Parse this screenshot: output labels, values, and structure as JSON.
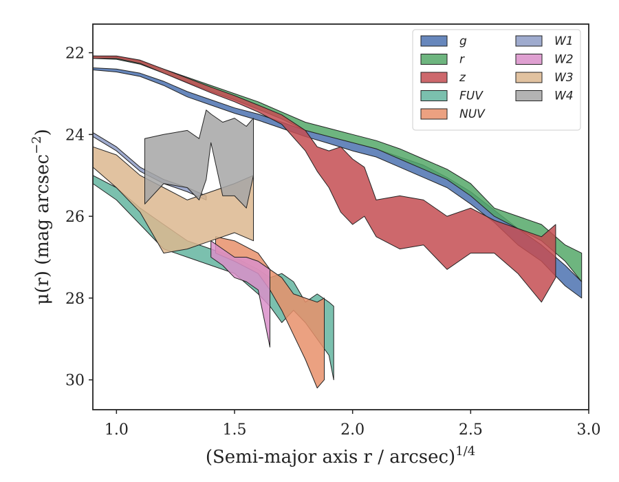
{
  "chart_data": {
    "type": "area",
    "xlabel": "(Semi-major axis r / arcsec)",
    "xlabel_exponent": "1/4",
    "ylabel": "μ(r) (mag arcsec",
    "ylabel_exponent": "−2",
    "ylabel_close": ")",
    "xlim": [
      0.9,
      3.0
    ],
    "ylim": [
      30.73,
      21.3
    ],
    "y_inverted": true,
    "xticks": [
      1.0,
      1.5,
      2.0,
      2.5,
      3.0
    ],
    "xtick_labels": [
      "1.0",
      "1.5",
      "2.0",
      "2.5",
      "3.0"
    ],
    "yticks": [
      22,
      24,
      26,
      28,
      30
    ],
    "ytick_labels": [
      "22",
      "24",
      "26",
      "28",
      "30"
    ],
    "legend_position": "top-right",
    "legend_columns": 2,
    "series": [
      {
        "name": "g",
        "color": "#4c72b0",
        "x": [
          0.9,
          1.0,
          1.1,
          1.2,
          1.3,
          1.4,
          1.5,
          1.6,
          1.7,
          1.8,
          1.9,
          2.0,
          2.1,
          2.2,
          2.3,
          2.4,
          2.5,
          2.6,
          2.7,
          2.8,
          2.9,
          2.97
        ],
        "lo": [
          22.37,
          22.4,
          22.5,
          22.7,
          22.95,
          23.15,
          23.35,
          23.5,
          23.7,
          23.9,
          24.05,
          24.2,
          24.35,
          24.55,
          24.75,
          25.05,
          25.4,
          25.85,
          26.3,
          26.7,
          27.2,
          27.6
        ],
        "hi": [
          22.42,
          22.47,
          22.58,
          22.8,
          23.08,
          23.28,
          23.48,
          23.65,
          23.85,
          24.05,
          24.22,
          24.4,
          24.55,
          24.8,
          25.05,
          25.3,
          25.7,
          26.15,
          26.7,
          27.1,
          27.7,
          28.0
        ]
      },
      {
        "name": "r",
        "color": "#55a868",
        "x": [
          0.9,
          1.0,
          1.1,
          1.2,
          1.3,
          1.4,
          1.5,
          1.6,
          1.7,
          1.8,
          1.9,
          2.0,
          2.1,
          2.2,
          2.3,
          2.4,
          2.5,
          2.6,
          2.7,
          2.8,
          2.9,
          2.97
        ],
        "lo": [
          22.08,
          22.1,
          22.2,
          22.4,
          22.6,
          22.8,
          23.0,
          23.2,
          23.45,
          23.7,
          23.85,
          24.0,
          24.15,
          24.35,
          24.6,
          24.85,
          25.2,
          25.8,
          26.0,
          26.2,
          26.7,
          26.9
        ],
        "hi": [
          22.14,
          22.16,
          22.28,
          22.5,
          22.72,
          22.95,
          23.15,
          23.38,
          23.62,
          23.9,
          24.05,
          24.2,
          24.35,
          24.6,
          24.85,
          25.1,
          25.5,
          26.0,
          26.3,
          26.6,
          27.1,
          27.6
        ]
      },
      {
        "name": "z",
        "color": "#c44e52",
        "x": [
          0.9,
          1.0,
          1.1,
          1.2,
          1.3,
          1.4,
          1.5,
          1.6,
          1.7,
          1.8,
          1.85,
          1.9,
          1.95,
          2.0,
          2.05,
          2.1,
          2.2,
          2.3,
          2.4,
          2.5,
          2.6,
          2.7,
          2.8,
          2.86
        ],
        "lo": [
          22.08,
          22.08,
          22.18,
          22.4,
          22.62,
          22.84,
          23.05,
          23.28,
          23.52,
          23.9,
          24.3,
          24.4,
          24.3,
          24.6,
          24.8,
          25.6,
          25.5,
          25.6,
          26.0,
          25.8,
          26.1,
          26.3,
          26.5,
          26.2
        ],
        "hi": [
          22.14,
          22.14,
          22.26,
          22.5,
          22.74,
          22.98,
          23.2,
          23.45,
          23.75,
          24.4,
          24.9,
          25.3,
          25.9,
          26.2,
          26.0,
          26.5,
          26.8,
          26.7,
          27.3,
          26.9,
          26.9,
          27.4,
          28.1,
          27.5
        ]
      },
      {
        "name": "FUV",
        "color": "#64b5a0",
        "x": [
          0.9,
          1.0,
          1.1,
          1.2,
          1.3,
          1.4,
          1.5,
          1.6,
          1.65,
          1.7,
          1.75,
          1.8,
          1.85,
          1.9,
          1.92
        ],
        "lo": [
          25.0,
          25.3,
          25.8,
          26.2,
          26.6,
          26.8,
          27.0,
          27.3,
          27.5,
          27.4,
          27.6,
          28.1,
          27.9,
          28.1,
          28.2
        ],
        "hi": [
          25.2,
          25.6,
          26.2,
          26.8,
          27.0,
          27.2,
          27.4,
          27.9,
          28.2,
          28.6,
          28.3,
          28.6,
          29.0,
          29.4,
          30.0
        ]
      },
      {
        "name": "NUV",
        "color": "#e8916b",
        "x": [
          1.42,
          1.5,
          1.6,
          1.65,
          1.7,
          1.75,
          1.8,
          1.85,
          1.88
        ],
        "lo": [
          26.5,
          26.6,
          26.9,
          27.3,
          27.5,
          27.9,
          28.0,
          28.1,
          28.0
        ],
        "hi": [
          26.9,
          27.1,
          27.4,
          27.8,
          28.3,
          28.9,
          29.5,
          30.2,
          30.0
        ]
      },
      {
        "name": "W1",
        "color": "#8e9cc5",
        "x": [
          0.9,
          1.0,
          1.1,
          1.2,
          1.25,
          1.3,
          1.38
        ],
        "lo": [
          23.95,
          24.3,
          24.8,
          25.1,
          25.2,
          25.3,
          25.5
        ],
        "hi": [
          24.05,
          24.4,
          24.9,
          25.2,
          25.3,
          25.4,
          25.6
        ]
      },
      {
        "name": "W2",
        "color": "#d98fc9",
        "x": [
          1.4,
          1.45,
          1.5,
          1.55,
          1.6,
          1.65
        ],
        "lo": [
          26.6,
          26.8,
          27.0,
          27.0,
          27.1,
          27.3
        ],
        "hi": [
          27.0,
          27.2,
          27.5,
          27.6,
          27.8,
          29.2
        ]
      },
      {
        "name": "W3",
        "color": "#dcb78f",
        "x": [
          0.9,
          1.0,
          1.1,
          1.2,
          1.3,
          1.4,
          1.5,
          1.58
        ],
        "lo": [
          24.3,
          24.5,
          25.0,
          25.3,
          25.6,
          25.4,
          25.2,
          25.0
        ],
        "hi": [
          24.8,
          25.3,
          25.9,
          26.9,
          26.8,
          26.6,
          26.4,
          26.6
        ]
      },
      {
        "name": "W4",
        "color": "#a6a6a6",
        "x": [
          1.12,
          1.2,
          1.3,
          1.35,
          1.38,
          1.4,
          1.45,
          1.5,
          1.55,
          1.58
        ],
        "lo": [
          24.1,
          24.0,
          23.9,
          24.1,
          23.4,
          23.5,
          23.7,
          23.6,
          23.8,
          23.6
        ],
        "hi": [
          25.7,
          25.2,
          25.3,
          25.6,
          25.1,
          24.2,
          25.5,
          25.5,
          25.8,
          25.0
        ]
      }
    ]
  }
}
